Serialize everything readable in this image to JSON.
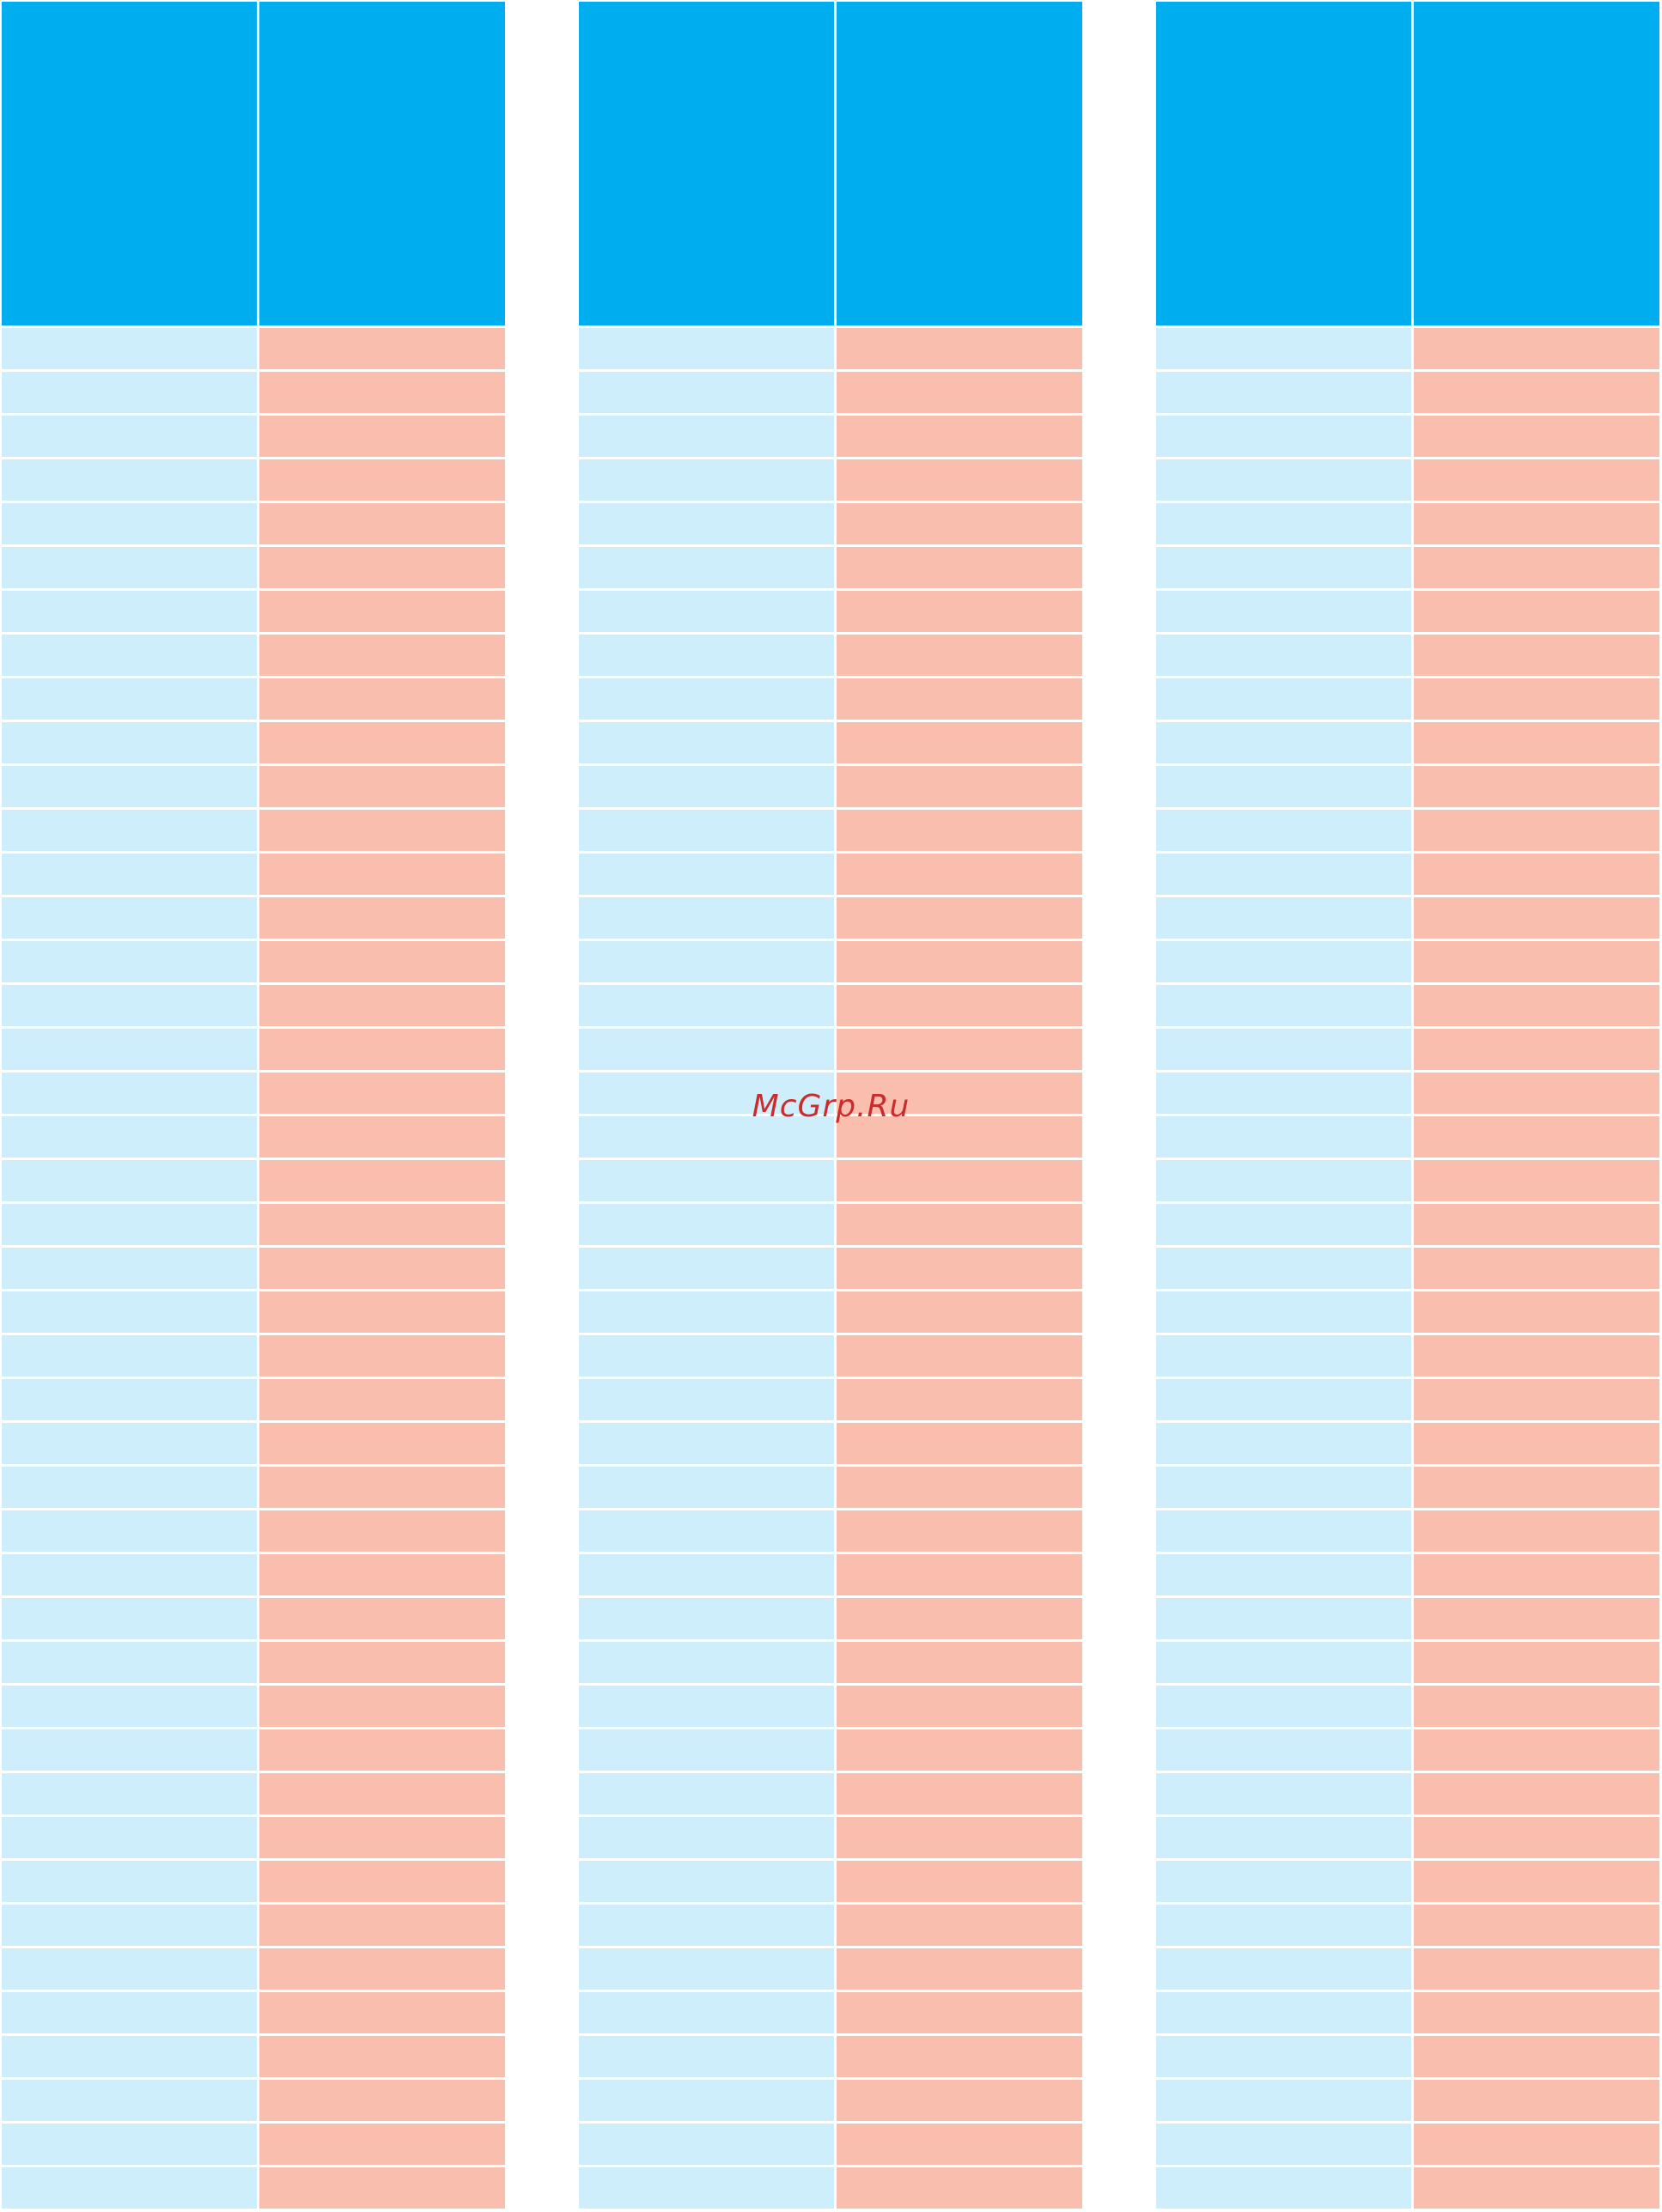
{
  "colors": {
    "header": "#00aeef",
    "left_column": "#cdeefa",
    "right_column": "#f9beae",
    "watermark": "#cc2b2b"
  },
  "watermark": "McGrp.Ru",
  "tables": [
    {
      "rows": 43
    },
    {
      "rows": 43
    },
    {
      "rows": 43
    }
  ]
}
